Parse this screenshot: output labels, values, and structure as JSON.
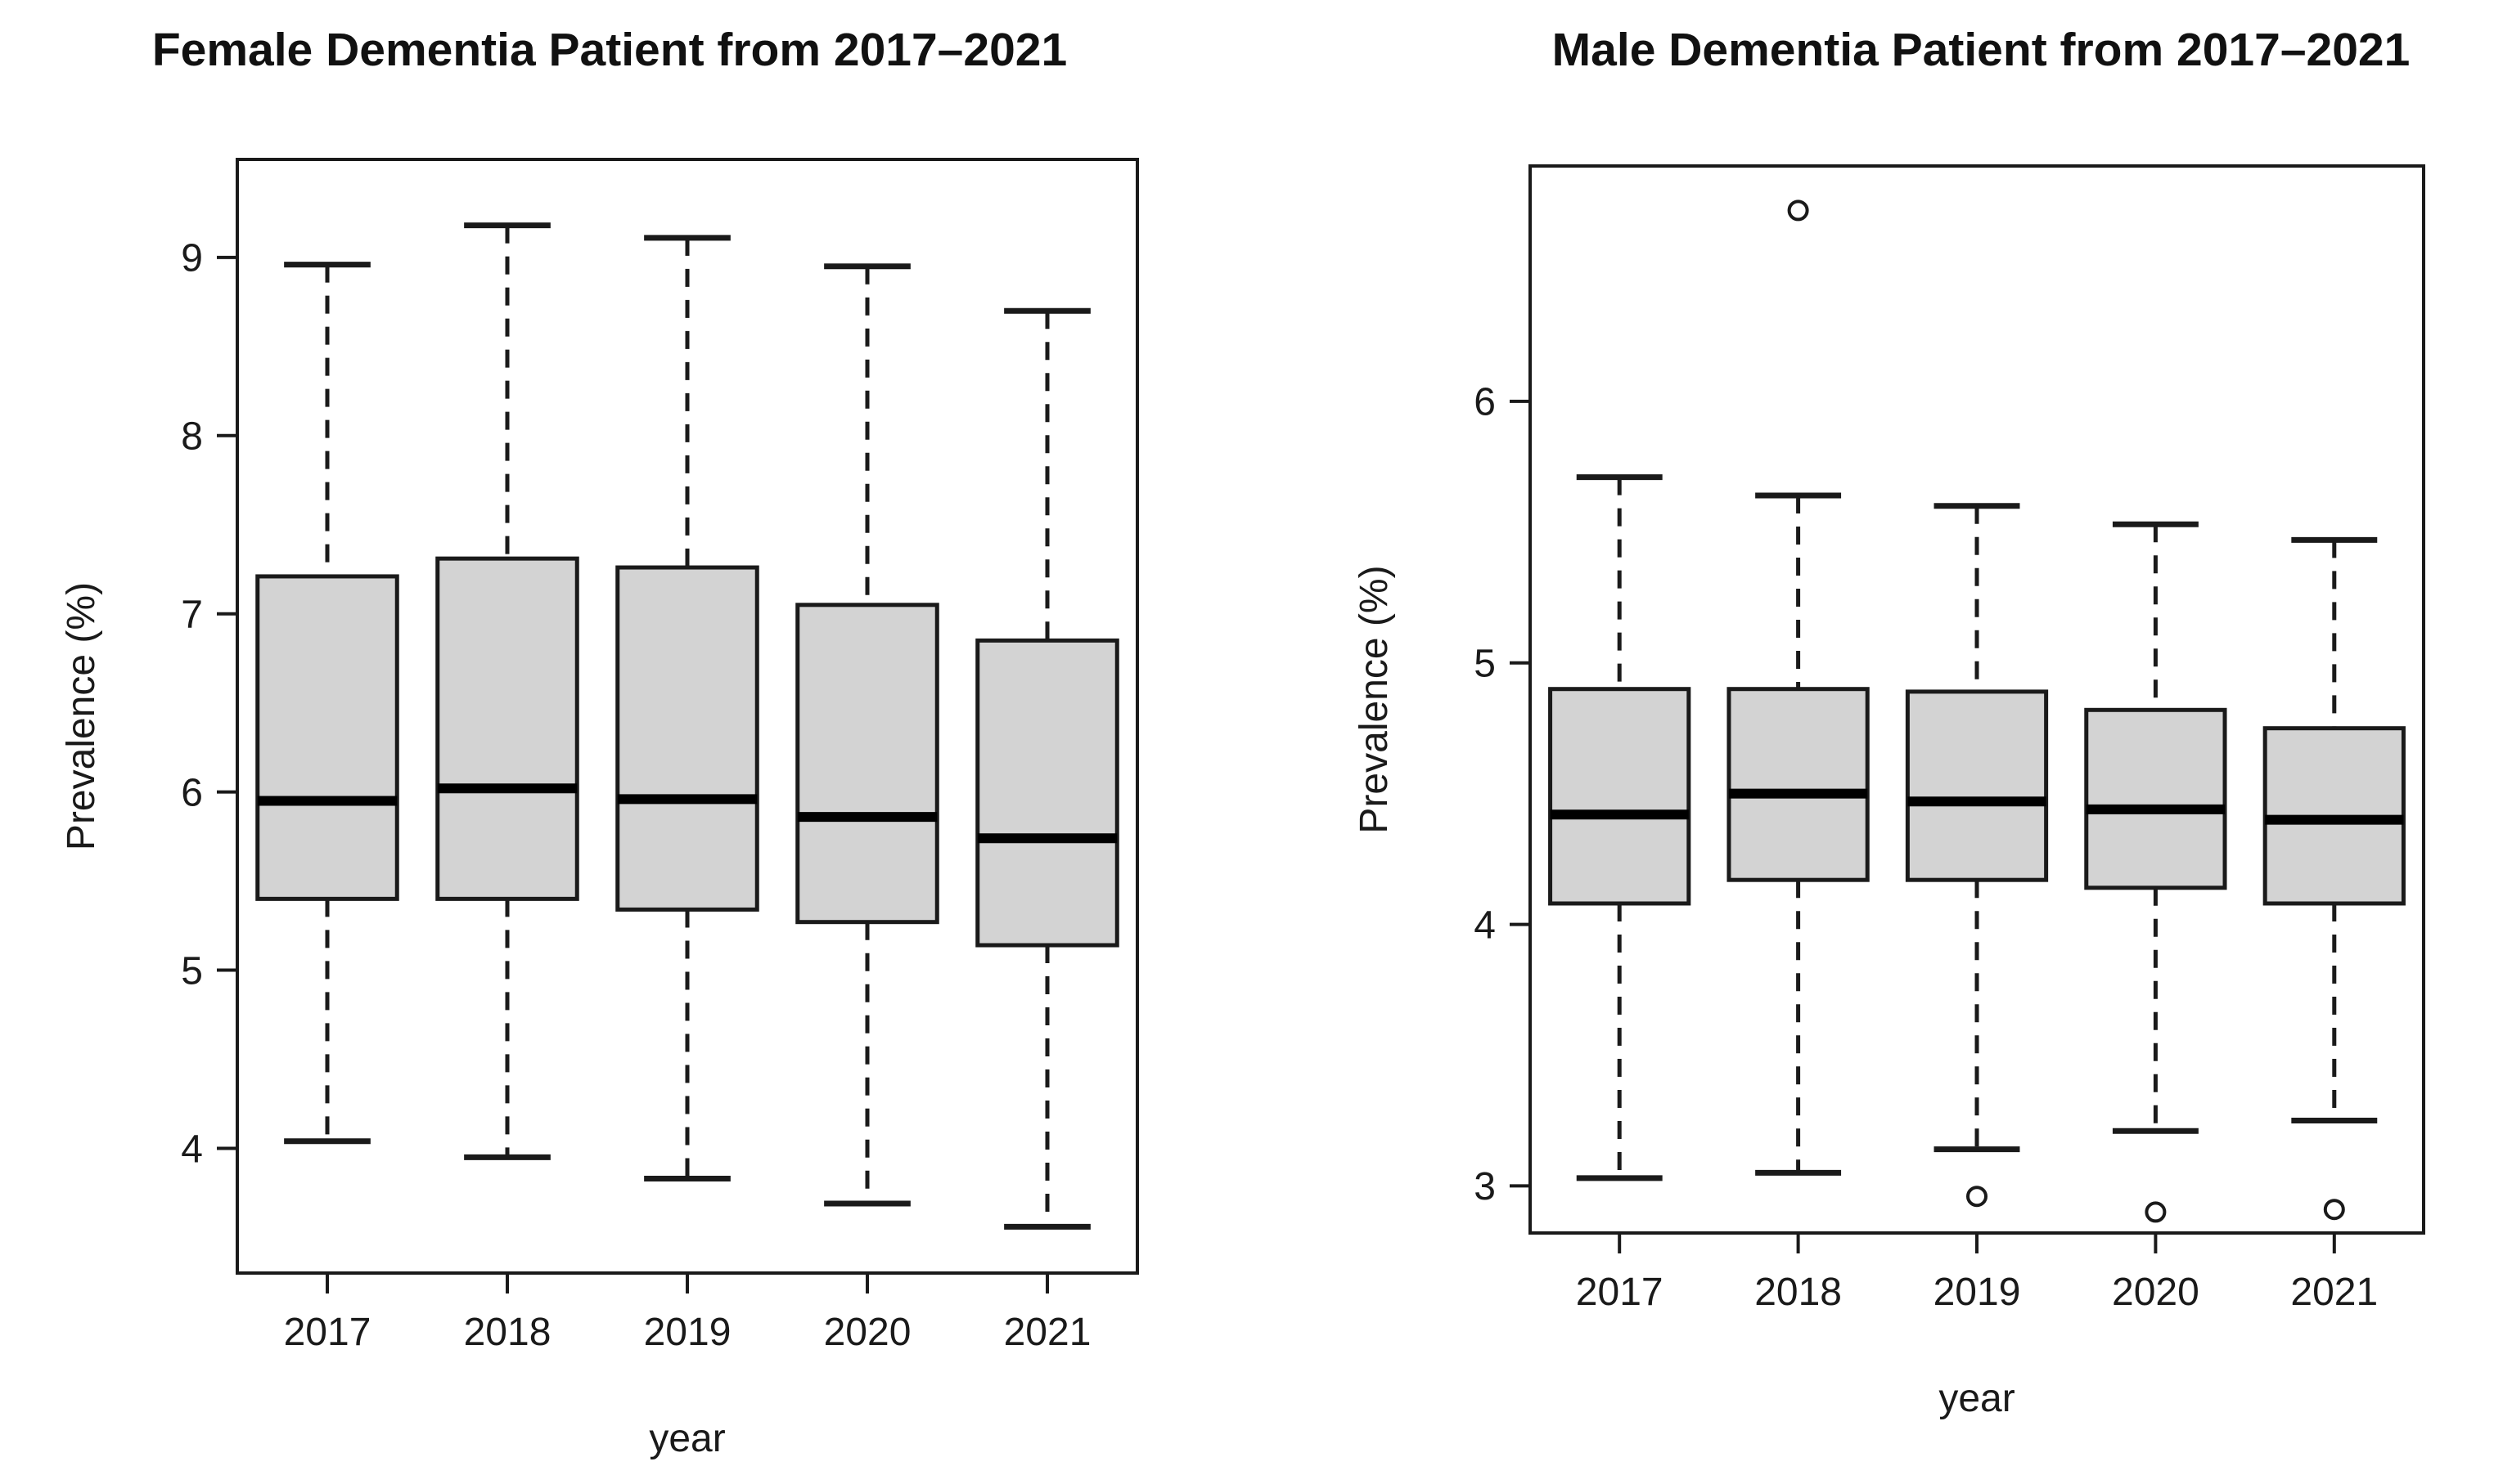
{
  "chart_data": [
    {
      "type": "boxplot",
      "title": "Female Dementia Patient from 2017–2021",
      "xlabel": "year",
      "ylabel": "Prevalence (%)",
      "categories": [
        "2017",
        "2018",
        "2019",
        "2020",
        "2021"
      ],
      "yticks": [
        4,
        5,
        6,
        7,
        8,
        9
      ],
      "ylim": [
        3.3,
        9.55
      ],
      "grid": false,
      "legend": "none",
      "boxes": [
        {
          "category": "2017",
          "whisker_low": 4.04,
          "q1": 5.4,
          "median": 5.95,
          "q3": 7.21,
          "whisker_high": 8.96,
          "outliers": []
        },
        {
          "category": "2018",
          "whisker_low": 3.95,
          "q1": 5.4,
          "median": 6.02,
          "q3": 7.31,
          "whisker_high": 9.18,
          "outliers": []
        },
        {
          "category": "2019",
          "whisker_low": 3.83,
          "q1": 5.34,
          "median": 5.96,
          "q3": 7.26,
          "whisker_high": 9.11,
          "outliers": []
        },
        {
          "category": "2020",
          "whisker_low": 3.69,
          "q1": 5.27,
          "median": 5.86,
          "q3": 7.05,
          "whisker_high": 8.95,
          "outliers": []
        },
        {
          "category": "2021",
          "whisker_low": 3.56,
          "q1": 5.14,
          "median": 5.74,
          "q3": 6.85,
          "whisker_high": 8.7,
          "outliers": []
        }
      ],
      "style": {
        "box_fill": "#d3d3d3",
        "line_color": "#1a1a1a",
        "median_color": "#000000",
        "background": "#ffffff"
      }
    },
    {
      "type": "boxplot",
      "title": "Male Dementia Patient from 2017–2021",
      "xlabel": "year",
      "ylabel": "Prevalence (%)",
      "categories": [
        "2017",
        "2018",
        "2019",
        "2020",
        "2021"
      ],
      "yticks": [
        3,
        4,
        5,
        6
      ],
      "ylim": [
        2.82,
        6.9
      ],
      "grid": false,
      "legend": "none",
      "boxes": [
        {
          "category": "2017",
          "whisker_low": 3.03,
          "q1": 4.08,
          "median": 4.42,
          "q3": 4.9,
          "whisker_high": 5.71,
          "outliers": []
        },
        {
          "category": "2018",
          "whisker_low": 3.05,
          "q1": 4.17,
          "median": 4.5,
          "q3": 4.9,
          "whisker_high": 5.64,
          "outliers": [
            6.73
          ]
        },
        {
          "category": "2019",
          "whisker_low": 3.14,
          "q1": 4.17,
          "median": 4.47,
          "q3": 4.89,
          "whisker_high": 5.6,
          "outliers": [
            2.96
          ]
        },
        {
          "category": "2020",
          "whisker_low": 3.21,
          "q1": 4.14,
          "median": 4.44,
          "q3": 4.82,
          "whisker_high": 5.53,
          "outliers": [
            2.9
          ]
        },
        {
          "category": "2021",
          "whisker_low": 3.25,
          "q1": 4.08,
          "median": 4.4,
          "q3": 4.75,
          "whisker_high": 5.47,
          "outliers": [
            2.91
          ]
        }
      ],
      "style": {
        "box_fill": "#d3d3d3",
        "line_color": "#1a1a1a",
        "median_color": "#000000",
        "background": "#ffffff"
      }
    }
  ]
}
